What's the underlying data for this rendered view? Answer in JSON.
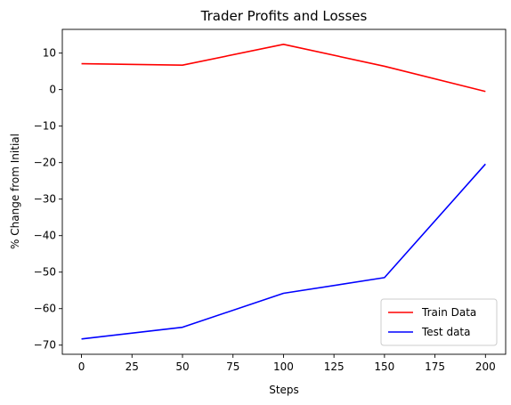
{
  "chart_data": {
    "type": "line",
    "title": "Trader Profits and Losses",
    "xlabel": "Steps",
    "ylabel": "% Change from Initial",
    "x": [
      0,
      50,
      100,
      150,
      200
    ],
    "xlim": [
      -9.5,
      210
    ],
    "ylim": [
      -72.5,
      16.5
    ],
    "xticks": [
      0,
      25,
      50,
      75,
      100,
      125,
      150,
      175,
      200
    ],
    "yticks": [
      10,
      0,
      -10,
      -20,
      -30,
      -40,
      -50,
      -60,
      -70
    ],
    "grid": false,
    "legend_position": "lower-right",
    "series": [
      {
        "name": "Train Data",
        "color": "#ff0000",
        "values": [
          7.1,
          6.7,
          12.4,
          6.4,
          -0.5
        ]
      },
      {
        "name": "Test data",
        "color": "#0000ff",
        "values": [
          -68.3,
          -65.1,
          -55.8,
          -51.5,
          -20.4
        ]
      }
    ]
  }
}
